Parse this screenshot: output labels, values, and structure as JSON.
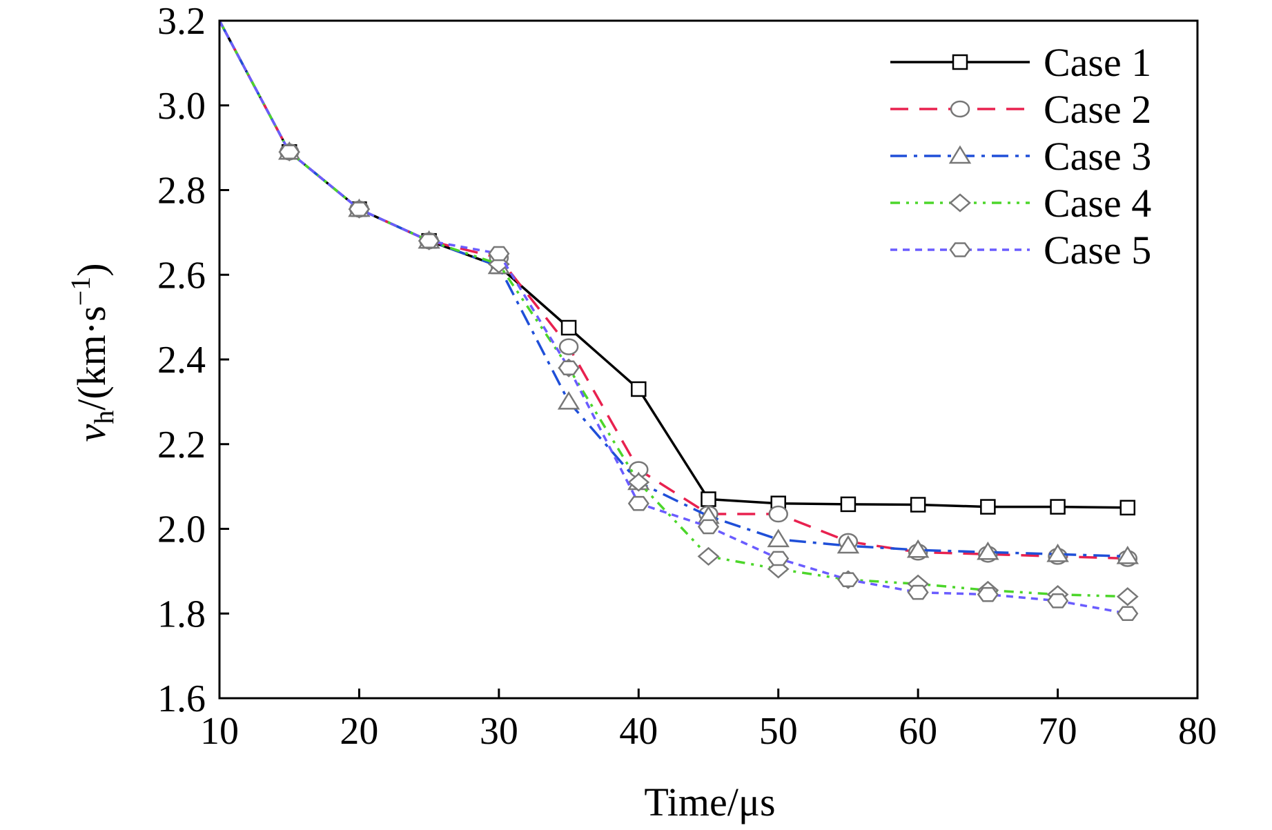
{
  "chart_data": {
    "type": "line",
    "xlabel": "Time/μs",
    "ylabel": {
      "var": "v",
      "sub": "h",
      "mid": "/(km·s",
      "sup": "−1",
      "end": ")"
    },
    "xlim": [
      10,
      80
    ],
    "ylim": [
      1.6,
      3.2
    ],
    "xticks": [
      "10",
      "20",
      "30",
      "40",
      "50",
      "60",
      "70",
      "80"
    ],
    "yticks": [
      "1.6",
      "1.8",
      "2.0",
      "2.2",
      "2.4",
      "2.6",
      "2.8",
      "3.0",
      "3.2"
    ],
    "grid": false,
    "legend_position": "top-right",
    "x": [
      10,
      15,
      20,
      25,
      30,
      35,
      40,
      45,
      50,
      55,
      60,
      65,
      70,
      75
    ],
    "series": [
      {
        "name": "Case 1",
        "color": "#000000",
        "dash": "solid",
        "marker": "square",
        "values": [
          3.2,
          2.89,
          2.755,
          2.68,
          2.62,
          2.475,
          2.33,
          2.07,
          2.06,
          2.058,
          2.057,
          2.052,
          2.052,
          2.05
        ]
      },
      {
        "name": "Case 2",
        "color": "#e8214f",
        "dash": "dash",
        "marker": "circle",
        "values": [
          3.2,
          2.89,
          2.755,
          2.68,
          2.64,
          2.43,
          2.14,
          2.035,
          2.035,
          1.97,
          1.945,
          1.94,
          1.935,
          1.93
        ]
      },
      {
        "name": "Case 3",
        "color": "#1f4fd8",
        "dash": "dashdot",
        "marker": "triangle",
        "values": [
          3.2,
          2.89,
          2.755,
          2.68,
          2.62,
          2.3,
          2.11,
          2.03,
          1.975,
          1.96,
          1.95,
          1.945,
          1.94,
          1.935
        ]
      },
      {
        "name": "Case 4",
        "color": "#4cd62a",
        "dash": "dashdotdot",
        "marker": "diamond",
        "values": [
          3.2,
          2.89,
          2.755,
          2.68,
          2.625,
          2.38,
          2.11,
          1.935,
          1.905,
          1.88,
          1.87,
          1.855,
          1.845,
          1.84
        ]
      },
      {
        "name": "Case 5",
        "color": "#6a5cff",
        "dash": "shortdash",
        "marker": "hexagon",
        "values": [
          3.2,
          2.89,
          2.755,
          2.68,
          2.65,
          2.38,
          2.06,
          2.005,
          1.93,
          1.88,
          1.85,
          1.845,
          1.83,
          1.8
        ]
      }
    ]
  }
}
